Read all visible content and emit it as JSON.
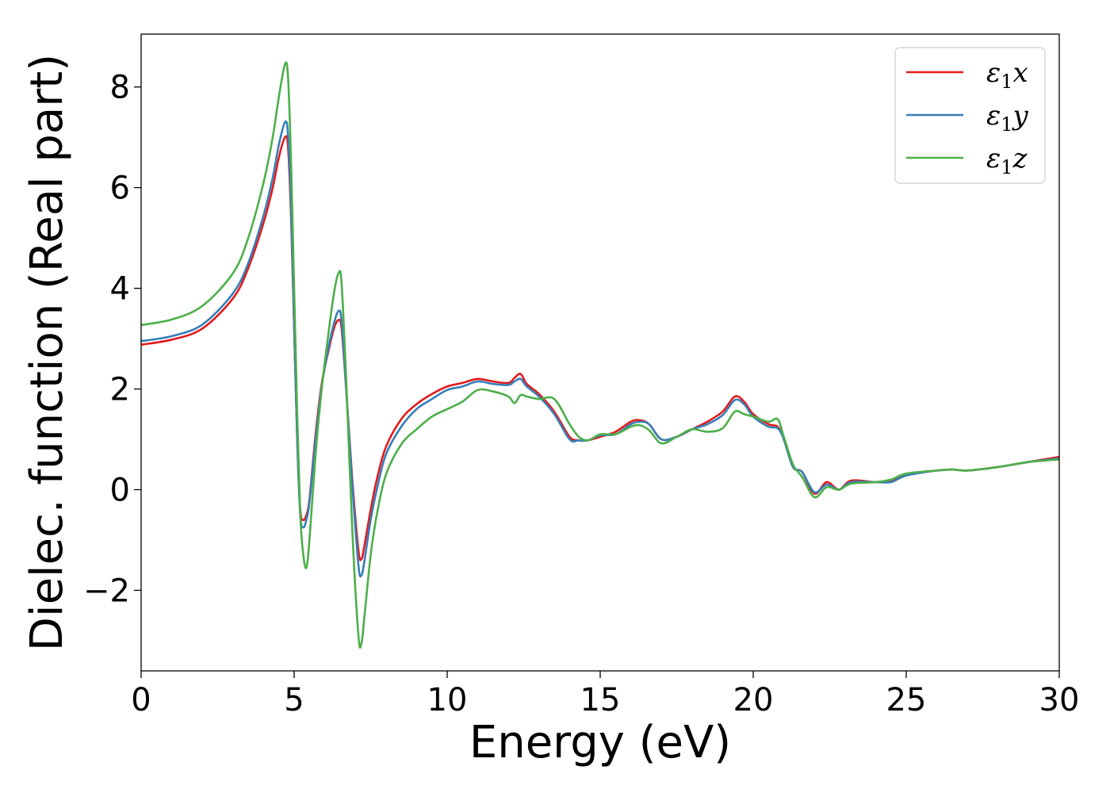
{
  "chart_data": {
    "type": "line",
    "title": "",
    "xlabel": "Energy (eV)",
    "ylabel": "Dielec. function (Real part)",
    "xlim": [
      0,
      30
    ],
    "ylim": [
      -3.6,
      9.05
    ],
    "xticks": [
      0,
      5,
      10,
      15,
      20,
      25,
      30
    ],
    "xtick_labels": [
      "0",
      "5",
      "10",
      "15",
      "20",
      "25",
      "30"
    ],
    "yticks": [
      -2,
      0,
      2,
      4,
      6,
      8
    ],
    "ytick_labels": [
      "−2",
      "0",
      "2",
      "4",
      "6",
      "8"
    ],
    "grid": false,
    "legend_position": "top-right",
    "series": [
      {
        "name": "ε1x",
        "legend_main": "ε",
        "legend_sub": "1",
        "legend_tail": "x",
        "color": "#e41a1c",
        "x": [
          0,
          1,
          2,
          3,
          3.5,
          4,
          4.3,
          4.5,
          4.7,
          4.8,
          4.9,
          5.0,
          5.1,
          5.2,
          5.3,
          5.4,
          5.5,
          5.7,
          5.9,
          6.1,
          6.3,
          6.45,
          6.55,
          6.7,
          6.9,
          7.1,
          7.2,
          7.3,
          7.5,
          7.7,
          8.0,
          8.5,
          9.0,
          9.5,
          10.0,
          10.5,
          11.0,
          11.5,
          12.0,
          12.2,
          12.4,
          12.6,
          13.0,
          13.5,
          14.0,
          14.3,
          14.6,
          15.0,
          15.5,
          16.0,
          16.3,
          16.6,
          17.0,
          17.5,
          18.0,
          18.5,
          19.0,
          19.4,
          19.7,
          20.0,
          20.5,
          20.8,
          21.0,
          21.3,
          21.6,
          22.0,
          22.4,
          22.8,
          23.2,
          24.0,
          24.5,
          25.0,
          26.0,
          26.5,
          27.0,
          28.0,
          29.0,
          30.0
        ],
        "y": [
          2.88,
          2.98,
          3.2,
          3.8,
          4.4,
          5.3,
          6.0,
          6.6,
          7.0,
          6.8,
          5.4,
          3.2,
          1.0,
          -0.4,
          -0.6,
          -0.5,
          -0.2,
          1.1,
          2.1,
          2.7,
          3.2,
          3.37,
          3.2,
          2.0,
          0.2,
          -1.2,
          -1.38,
          -1.1,
          -0.4,
          0.2,
          0.85,
          1.4,
          1.7,
          1.9,
          2.05,
          2.12,
          2.2,
          2.15,
          2.12,
          2.22,
          2.3,
          2.1,
          1.9,
          1.55,
          1.05,
          0.98,
          0.98,
          1.05,
          1.15,
          1.35,
          1.38,
          1.3,
          1.0,
          1.05,
          1.2,
          1.35,
          1.55,
          1.85,
          1.75,
          1.5,
          1.3,
          1.25,
          1.0,
          0.45,
          0.35,
          -0.08,
          0.15,
          0.0,
          0.18,
          0.15,
          0.18,
          0.3,
          0.38,
          0.4,
          0.38,
          0.45,
          0.55,
          0.65
        ]
      },
      {
        "name": "ε1y",
        "legend_main": "ε",
        "legend_sub": "1",
        "legend_tail": "y",
        "color": "#377eb8",
        "x": [
          0,
          1,
          2,
          3,
          3.5,
          4,
          4.3,
          4.5,
          4.7,
          4.8,
          4.9,
          5.0,
          5.1,
          5.2,
          5.3,
          5.4,
          5.5,
          5.7,
          5.9,
          6.1,
          6.3,
          6.45,
          6.55,
          6.7,
          6.9,
          7.1,
          7.2,
          7.3,
          7.5,
          7.7,
          8.0,
          8.5,
          9.0,
          9.5,
          10.0,
          10.5,
          11.0,
          11.5,
          12.0,
          12.2,
          12.4,
          12.6,
          13.0,
          13.5,
          14.0,
          14.3,
          14.6,
          15.0,
          15.5,
          16.0,
          16.3,
          16.6,
          17.0,
          17.5,
          18.0,
          18.5,
          19.0,
          19.4,
          19.7,
          20.0,
          20.5,
          20.8,
          21.0,
          21.3,
          21.6,
          22.0,
          22.4,
          22.8,
          23.2,
          24.0,
          24.5,
          25.0,
          26.0,
          26.5,
          27.0,
          28.0,
          29.0,
          30.0
        ],
        "y": [
          2.95,
          3.05,
          3.28,
          3.9,
          4.5,
          5.45,
          6.2,
          6.85,
          7.3,
          7.05,
          5.6,
          3.3,
          1.0,
          -0.5,
          -0.75,
          -0.6,
          -0.25,
          1.0,
          2.05,
          2.75,
          3.3,
          3.55,
          3.35,
          2.0,
          0.1,
          -1.5,
          -1.7,
          -1.4,
          -0.6,
          0.0,
          0.7,
          1.25,
          1.6,
          1.8,
          1.98,
          2.05,
          2.15,
          2.1,
          2.08,
          2.15,
          2.2,
          2.05,
          1.85,
          1.5,
          1.0,
          0.98,
          0.98,
          1.08,
          1.1,
          1.3,
          1.35,
          1.3,
          1.0,
          1.05,
          1.2,
          1.3,
          1.48,
          1.78,
          1.7,
          1.45,
          1.25,
          1.22,
          1.0,
          0.45,
          0.35,
          -0.05,
          0.1,
          0.0,
          0.15,
          0.15,
          0.15,
          0.28,
          0.38,
          0.4,
          0.38,
          0.45,
          0.55,
          0.62
        ]
      },
      {
        "name": "ε1z",
        "legend_main": "ε",
        "legend_sub": "1",
        "legend_tail": "z",
        "color": "#4daf4a",
        "x": [
          0,
          1,
          2,
          3,
          3.5,
          4,
          4.3,
          4.5,
          4.7,
          4.8,
          4.9,
          5.0,
          5.1,
          5.2,
          5.3,
          5.4,
          5.5,
          5.7,
          5.9,
          6.1,
          6.3,
          6.45,
          6.55,
          6.7,
          6.9,
          7.1,
          7.2,
          7.3,
          7.5,
          7.7,
          8.0,
          8.5,
          9.0,
          9.5,
          10.0,
          10.5,
          11.0,
          11.5,
          12.0,
          12.2,
          12.4,
          12.6,
          13.0,
          13.5,
          14.0,
          14.3,
          14.6,
          15.0,
          15.5,
          16.0,
          16.3,
          16.6,
          17.0,
          17.5,
          18.0,
          18.5,
          19.0,
          19.4,
          19.7,
          20.0,
          20.5,
          20.8,
          21.0,
          21.3,
          21.6,
          22.0,
          22.4,
          22.8,
          23.2,
          24.0,
          24.5,
          25.0,
          26.0,
          26.5,
          27.0,
          28.0,
          29.0,
          30.0
        ],
        "y": [
          3.27,
          3.38,
          3.65,
          4.3,
          5.0,
          6.1,
          7.0,
          7.8,
          8.45,
          8.2,
          6.5,
          4.0,
          1.5,
          -0.5,
          -1.3,
          -1.55,
          -1.0,
          0.7,
          2.0,
          3.0,
          3.9,
          4.3,
          4.1,
          2.2,
          -0.8,
          -2.9,
          -3.05,
          -2.5,
          -1.3,
          -0.5,
          0.3,
          0.9,
          1.2,
          1.45,
          1.6,
          1.75,
          1.98,
          1.95,
          1.85,
          1.72,
          1.88,
          1.85,
          1.8,
          1.8,
          1.3,
          1.05,
          0.98,
          1.1,
          1.1,
          1.25,
          1.28,
          1.18,
          0.92,
          1.05,
          1.2,
          1.15,
          1.22,
          1.55,
          1.5,
          1.45,
          1.35,
          1.4,
          1.05,
          0.5,
          0.25,
          -0.15,
          0.05,
          0.0,
          0.12,
          0.15,
          0.2,
          0.32,
          0.38,
          0.4,
          0.38,
          0.45,
          0.55,
          0.6
        ]
      }
    ]
  }
}
